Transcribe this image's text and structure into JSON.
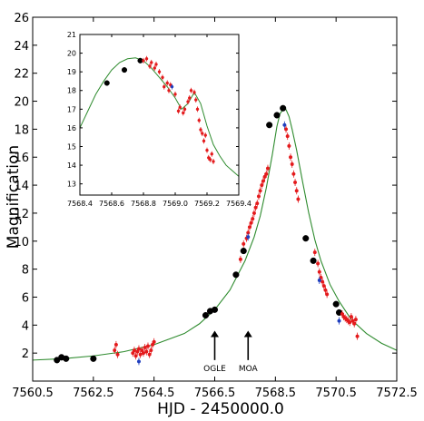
{
  "chart_data": [
    {
      "type": "scatter",
      "title": "",
      "xlabel": "HJD - 2450000.0",
      "ylabel": "Magnification",
      "xlim": [
        7560.5,
        7572.5
      ],
      "ylim": [
        0,
        26
      ],
      "xticks": [
        "7560.5",
        "7562.5",
        "7564.5",
        "7566.5",
        "7568.5",
        "7570.5",
        "7572.5"
      ],
      "yticks": [
        "2",
        "4",
        "6",
        "8",
        "10",
        "12",
        "14",
        "16",
        "18",
        "20",
        "22",
        "24",
        "26"
      ],
      "grid": false,
      "legend": "none",
      "model": {
        "name": "",
        "color": "#2e8b2e",
        "x": [
          7560.5,
          7561.5,
          7562.5,
          7563.5,
          7564.5,
          7565.5,
          7566.0,
          7566.5,
          7567.0,
          7567.5,
          7567.8,
          7568.0,
          7568.2,
          7568.4,
          7568.55,
          7568.65,
          7568.75,
          7568.8,
          7568.85,
          7568.95,
          7569.05,
          7569.2,
          7569.4,
          7569.6,
          7569.8,
          7570.0,
          7570.3,
          7570.6,
          7571.0,
          7571.5,
          7572.0,
          7572.5
        ],
        "y": [
          1.5,
          1.6,
          1.8,
          2.1,
          2.6,
          3.4,
          4.1,
          5.1,
          6.5,
          8.6,
          10.3,
          11.8,
          13.8,
          16.2,
          18.2,
          19.1,
          19.4,
          19.5,
          19.4,
          18.9,
          18.0,
          16.5,
          14.2,
          12.0,
          10.1,
          8.6,
          6.9,
          5.7,
          4.4,
          3.4,
          2.7,
          2.2
        ]
      },
      "series": [
        {
          "name": "",
          "color": "#000000",
          "marker": "circle-large",
          "x": [
            7561.3,
            7561.45,
            7561.6,
            7562.5,
            7566.2,
            7566.35,
            7566.5,
            7567.2,
            7567.45,
            7568.3,
            7568.55,
            7568.75,
            7569.5,
            7569.75,
            7570.5,
            7570.6
          ],
          "y": [
            1.5,
            1.7,
            1.6,
            1.6,
            4.7,
            5.0,
            5.1,
            7.6,
            9.3,
            18.3,
            19.0,
            19.5,
            10.2,
            8.6,
            5.5,
            4.9
          ]
        },
        {
          "name": "",
          "color": "#e41a1c",
          "marker": "circle-small",
          "x": [
            7563.2,
            7563.25,
            7563.3,
            7563.8,
            7563.85,
            7563.9,
            7563.95,
            7564.0,
            7564.05,
            7564.1,
            7564.15,
            7564.2,
            7564.25,
            7564.3,
            7564.35,
            7564.4,
            7564.45,
            7564.5,
            7567.35,
            7567.45,
            7567.55,
            7567.6,
            7567.65,
            7567.7,
            7567.75,
            7567.8,
            7567.85,
            7567.9,
            7567.95,
            7568.0,
            7568.05,
            7568.1,
            7568.15,
            7568.2,
            7568.25,
            7568.85,
            7568.9,
            7568.95,
            7569.0,
            7569.05,
            7569.1,
            7569.15,
            7569.2,
            7569.25,
            7569.8,
            7569.9,
            7569.95,
            7570.0,
            7570.05,
            7570.1,
            7570.15,
            7570.2,
            7570.7,
            7570.75,
            7570.8,
            7570.85,
            7570.9,
            7570.95,
            7571.0,
            7571.05,
            7571.1,
            7571.15,
            7571.2
          ],
          "y": [
            2.2,
            2.6,
            1.9,
            2.0,
            2.2,
            1.8,
            2.1,
            2.3,
            1.9,
            2.2,
            2.0,
            2.4,
            2.1,
            2.5,
            1.9,
            2.2,
            2.6,
            2.8,
            8.7,
            9.8,
            10.2,
            10.6,
            11.0,
            11.3,
            11.6,
            12.0,
            12.4,
            12.7,
            13.2,
            13.6,
            14.0,
            14.3,
            14.6,
            14.8,
            15.2,
            18.0,
            17.5,
            16.8,
            16.0,
            15.5,
            14.8,
            14.2,
            13.6,
            13.0,
            9.2,
            8.4,
            7.8,
            7.4,
            7.1,
            6.8,
            6.5,
            6.2,
            4.8,
            4.6,
            4.5,
            4.4,
            4.3,
            4.2,
            4.6,
            4.3,
            4.1,
            4.4,
            3.2
          ]
        },
        {
          "name": "",
          "color": "#1f3fbf",
          "marker": "circle-small",
          "x": [
            7564.0,
            7567.6,
            7568.8,
            7569.95,
            7570.6
          ],
          "y": [
            1.4,
            10.3,
            18.3,
            7.2,
            4.3
          ]
        }
      ],
      "annotations": [
        {
          "label": "OGLE",
          "x": 7566.5
        },
        {
          "label": "MOA",
          "x": 7567.6
        }
      ]
    },
    {
      "type": "scatter",
      "title": "",
      "xlabel": "",
      "ylabel": "",
      "xlim": [
        7568.4,
        7569.4
      ],
      "ylim": [
        12.4,
        21
      ],
      "xticks": [
        "7568.4",
        "7568.6",
        "7568.8",
        "7569.0",
        "7569.2",
        "7569.4"
      ],
      "yticks": [
        "13",
        "14",
        "15",
        "16",
        "17",
        "18",
        "19",
        "20",
        "21"
      ],
      "grid": false,
      "legend": "none",
      "model": {
        "name": "",
        "color": "#2e8b2e",
        "x": [
          7568.4,
          7568.45,
          7568.5,
          7568.55,
          7568.6,
          7568.65,
          7568.7,
          7568.75,
          7568.8,
          7568.85,
          7568.9,
          7568.95,
          7569.0,
          7569.04,
          7569.08,
          7569.12,
          7569.16,
          7569.2,
          7569.24,
          7569.28,
          7569.32,
          7569.36,
          7569.4
        ],
        "y": [
          16.0,
          16.9,
          17.8,
          18.5,
          19.1,
          19.5,
          19.7,
          19.75,
          19.6,
          19.2,
          18.7,
          18.2,
          17.6,
          17.0,
          17.3,
          17.9,
          17.3,
          16.1,
          15.1,
          14.5,
          14.0,
          13.7,
          13.4
        ]
      },
      "series": [
        {
          "name": "",
          "color": "#000000",
          "marker": "circle-large",
          "x": [
            7568.57,
            7568.68,
            7568.78
          ],
          "y": [
            18.4,
            19.1,
            19.6
          ]
        },
        {
          "name": "",
          "color": "#e41a1c",
          "marker": "circle-small",
          "x": [
            7568.8,
            7568.82,
            7568.84,
            7568.85,
            7568.87,
            7568.88,
            7568.9,
            7568.92,
            7568.93,
            7568.95,
            7568.96,
            7568.97,
            7569.0,
            7569.02,
            7569.03,
            7569.05,
            7569.06,
            7569.08,
            7569.09,
            7569.1,
            7569.12,
            7569.13,
            7569.14,
            7569.15,
            7569.16,
            7569.17,
            7569.18,
            7569.19,
            7569.2,
            7569.21,
            7569.22,
            7569.23,
            7569.24
          ],
          "y": [
            19.6,
            19.7,
            19.3,
            19.5,
            19.2,
            19.4,
            19.0,
            18.7,
            18.2,
            18.4,
            18.0,
            18.3,
            17.8,
            16.9,
            17.1,
            16.8,
            17.0,
            17.4,
            17.6,
            18.0,
            17.9,
            17.5,
            17.0,
            16.4,
            15.9,
            15.7,
            15.3,
            15.6,
            14.8,
            14.4,
            14.3,
            14.6,
            14.2
          ]
        },
        {
          "name": "",
          "color": "#1f3fbf",
          "marker": "circle-small",
          "x": [
            7568.98
          ],
          "y": [
            18.2
          ]
        }
      ]
    }
  ]
}
